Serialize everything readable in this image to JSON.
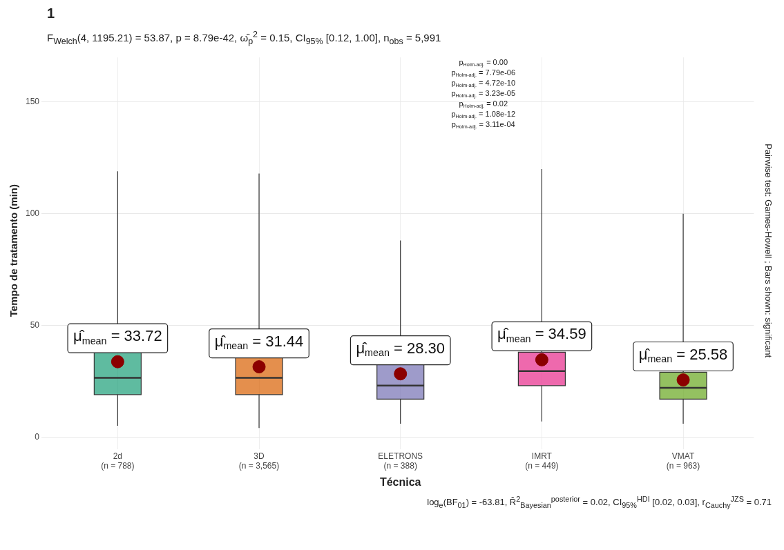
{
  "chart_data": {
    "type": "box",
    "title": "1",
    "subtitle": "F$_{Welch}$(4, 1195.21) = 53.87, p = 8.79e-42, ω̂$_{p}$$^{2}$ = 0.15, CI$_{95%}$ [0.12, 1.00], n$_{obs}$ = 5,991",
    "xlabel": "Técnica",
    "ylabel": "Tempo de tratamento (min)",
    "y2label": "Pairwise test: Games-Howell ; Bars shown: significant",
    "categories": [
      "2d\n(n = 788)",
      "3D\n(n = 3,565)",
      "ELETRONS\n(n = 388)",
      "IMRT\n(n = 449)",
      "VMAT\n(n = 963)"
    ],
    "colors": [
      "#1b9e77",
      "#d95f02",
      "#7570b3",
      "#e7298a",
      "#66a61e"
    ],
    "boxes": [
      {
        "low": 5,
        "q1": 19,
        "median": 26.5,
        "q3": 41.5,
        "high": 119
      },
      {
        "low": 4,
        "q1": 19,
        "median": 26.5,
        "q3": 37,
        "high": 118
      },
      {
        "low": 6,
        "q1": 17,
        "median": 23,
        "q3": 34,
        "high": 88
      },
      {
        "low": 7,
        "q1": 23,
        "median": 29.5,
        "q3": 38,
        "high": 120
      },
      {
        "low": 6,
        "q1": 17,
        "median": 22,
        "q3": 29,
        "high": 100
      }
    ],
    "series": [
      {
        "type": "scatter",
        "color": "#8b0000",
        "values": [
          33.72,
          31.44,
          28.3,
          34.59,
          25.58
        ],
        "value_labels": [
          "μ̂$_{mean}$ = 33.72",
          "μ̂$_{mean}$ = 31.44",
          "μ̂$_{mean}$ = 28.30",
          "μ̂$_{mean}$ = 34.59",
          "μ̂$_{mean}$ = 25.58"
        ]
      }
    ],
    "marker": "circle",
    "ylim": [
      -3,
      170
    ],
    "yticks": [
      0,
      50,
      100,
      150
    ],
    "grid": true,
    "annotations": [
      "p$_{Holm-adj.}$ = 0.00",
      "p$_{Holm-adj.}$ = 7.79e-06",
      "p$_{Holm-adj.}$ = 4.72e-10",
      "p$_{Holm-adj.}$ = 3.23e-05",
      "p$_{Holm-adj.}$ = 0.02",
      "p$_{Holm-adj.}$ = 1.08e-12",
      "p$_{Holm-adj.}$ = 3.11e-04",
      "log$_{e}$(BF$_{01}$) = -63.81, R̂$^{2}$$_{Bayesian}$$^{posterior}$ = 0.02, CI$_{95%}$$^{HDI}$ [0.02, 0.03], r$_{Cauchy}$$^{JZS}$ = 0.71"
    ]
  }
}
